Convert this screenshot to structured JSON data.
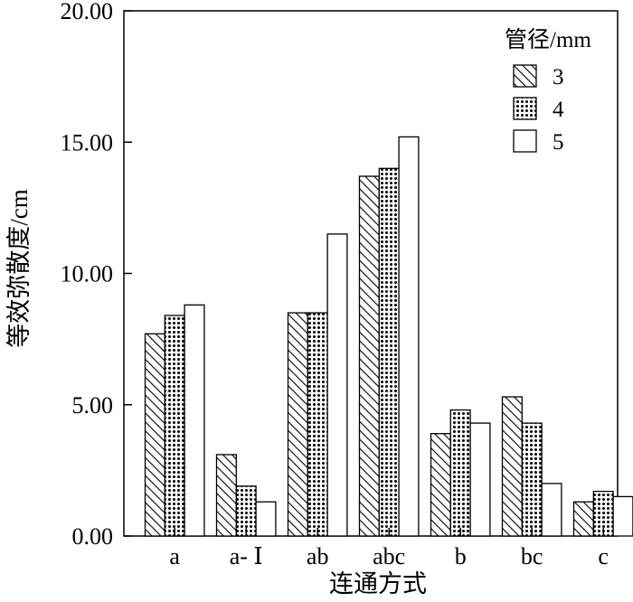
{
  "chart_data": {
    "type": "bar",
    "categories": [
      "a",
      "a- Ⅰ",
      "ab",
      "abc",
      "b",
      "bc",
      "c"
    ],
    "series": [
      {
        "name": "3",
        "values": [
          7.7,
          3.1,
          8.5,
          13.7,
          3.9,
          5.3,
          1.3
        ],
        "pattern": "hatch"
      },
      {
        "name": "4",
        "values": [
          8.4,
          1.9,
          8.5,
          14.0,
          4.8,
          4.3,
          1.7
        ],
        "pattern": "dots"
      },
      {
        "name": "5",
        "values": [
          8.8,
          1.3,
          11.5,
          15.2,
          4.3,
          2.0,
          1.5
        ],
        "pattern": "blank"
      }
    ],
    "title": "",
    "xlabel": "连通方式",
    "ylabel": "等效弥散度/cm",
    "ylim": [
      0,
      20
    ],
    "yticks": [
      "0.00",
      "5.00",
      "10.00",
      "15.00",
      "20.00"
    ],
    "ytick_values": [
      0,
      5,
      10,
      15,
      20
    ],
    "legend": {
      "title": "管径/mm",
      "placement": "top-right"
    },
    "grid": false
  }
}
